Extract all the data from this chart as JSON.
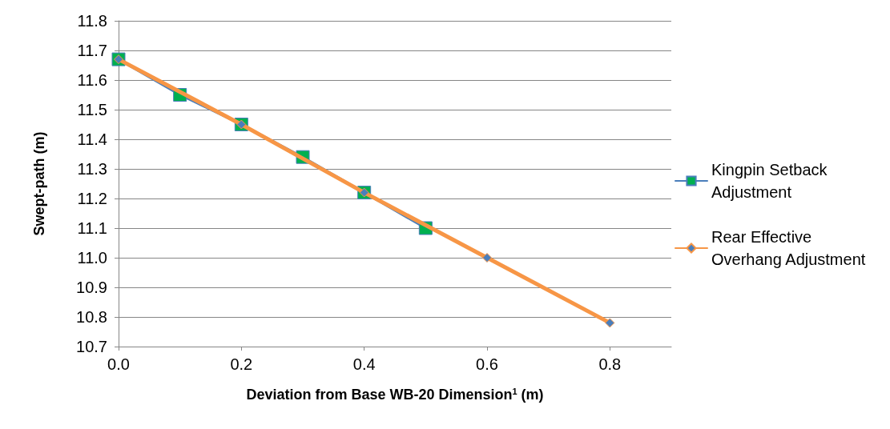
{
  "chart_data": {
    "type": "line",
    "xlabel": "Deviation from Base WB-20 Dimension$^{1}$ (m)",
    "ylabel": "Swept-path (m)",
    "xlim": [
      0,
      0.9
    ],
    "xticks": [
      {
        "value": 0,
        "label": "0.0"
      },
      {
        "value": 0.2,
        "label": "0.2"
      },
      {
        "value": 0.4,
        "label": "0.4"
      },
      {
        "value": 0.6,
        "label": "0.6"
      },
      {
        "value": 0.8,
        "label": "0.8"
      }
    ],
    "ylim": [
      10.7,
      11.8
    ],
    "yticks": [
      10.7,
      10.8,
      10.9,
      {
        "value": 11,
        "label": "11.0"
      },
      11.1,
      11.2,
      11.3,
      11.4,
      11.5,
      11.6,
      11.7,
      11.8
    ],
    "grid": "y",
    "legend": "right",
    "line_style": "solid",
    "series": [
      {
        "name": "Kingpin Setback Adjustment",
        "color": "#4a7ebb",
        "marker": "square",
        "colors": [
          "#00b050",
          "#00b050",
          "#00b050",
          "#00b050",
          "#00b050",
          "#00b050"
        ],
        "x": [
          0,
          0.1,
          0.2,
          0.3,
          0.4,
          0.5
        ],
        "values": [
          11.67,
          11.55,
          11.45,
          11.34,
          11.22,
          11.1
        ]
      },
      {
        "name": "Rear Effective Overhang Adjustment",
        "color": "#f79646",
        "marker": "diamond",
        "colors": [
          "#4a7ebb",
          "#4a7ebb",
          "#4a7ebb",
          "#4a7ebb",
          "#4a7ebb"
        ],
        "x": [
          0,
          0.2,
          0.4,
          0.6,
          0.8
        ],
        "values": [
          11.67,
          11.45,
          11.22,
          11.0,
          10.78
        ]
      }
    ]
  }
}
